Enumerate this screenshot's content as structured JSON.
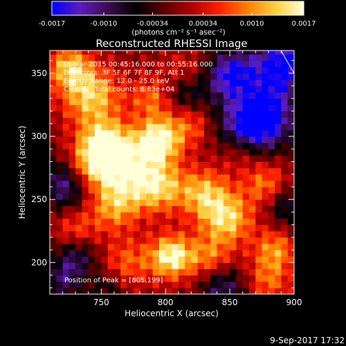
{
  "chart_data": {
    "type": "heatmap",
    "title": "Reconstructed RHESSI Image",
    "xlabel": "Heliocentric X (arcsec)",
    "ylabel": "Heliocentric Y (arcsec)",
    "xlim": [
      710,
      900
    ],
    "ylim": [
      175,
      368
    ],
    "x_ticks": [
      750,
      800,
      850,
      900
    ],
    "y_ticks": [
      200,
      250,
      300,
      350
    ],
    "colorbar": {
      "ticks": [
        "-0.0017",
        "-0.0010",
        "-0.00034",
        "0.00034",
        "0.0010",
        "0.0017"
      ],
      "tick_values": [
        -0.0017,
        -0.001,
        -0.00034,
        0.00034,
        0.001,
        0.0017
      ],
      "range": [
        -0.0017,
        0.0017
      ],
      "unit_label": "(photons cm⁻² s⁻¹ asec⁻²)",
      "colors": [
        "#0000ff",
        "#5a1cc0",
        "#3c0c50",
        "#000000",
        "#5a0000",
        "#b00000",
        "#ff2000",
        "#ff8000",
        "#ffd040",
        "#ffffd8"
      ]
    },
    "annotations": {
      "time": "18-Mar-2015 00:45:16.000 to 00:55:16.000",
      "detectors": "Detectors: 3F 5F 6F 7F 8F 9F, Att 1",
      "energy": "Energy Range: 12.0 - 25.0 keV",
      "clean": "Clean     Total counts: 6.63e+04",
      "peak": "Position of Peak = [805,199]"
    },
    "peak": [
      805,
      199
    ],
    "limb_line": true
  },
  "footer": {
    "date": "9-Sep-2017 17:32"
  }
}
